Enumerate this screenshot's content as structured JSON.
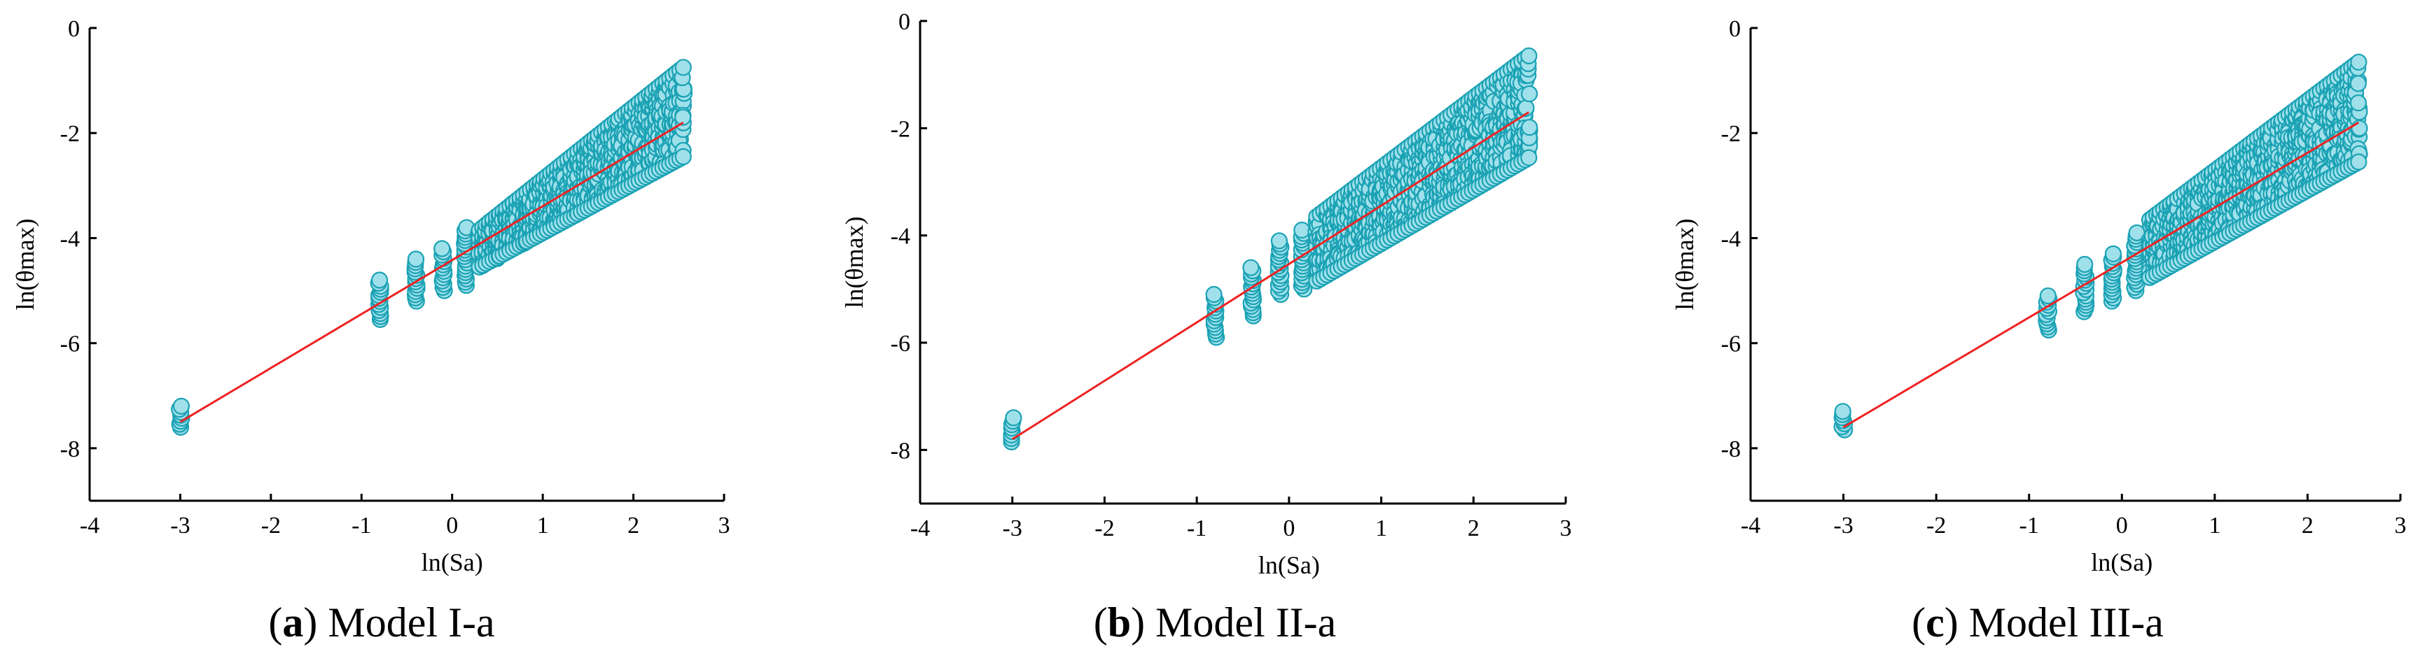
{
  "chart_data": [
    {
      "type": "scatter",
      "caption": {
        "open": "(",
        "letter": "a",
        "close": ")",
        "text": " Model I-a"
      },
      "xlabel": "ln(Sa)",
      "ylabel": "ln(θmax)",
      "xlim": [
        -4,
        3
      ],
      "ylim": [
        -9,
        0
      ],
      "xticks": [
        -4,
        -3,
        -2,
        -1,
        0,
        1,
        2,
        3
      ],
      "yticks": [
        0,
        -2,
        -4,
        -6,
        -8
      ],
      "fit_line": {
        "x": [
          -3.0,
          2.55
        ],
        "y": [
          -7.5,
          -1.8
        ]
      },
      "clusters": [
        {
          "x": -3.0,
          "ymin": -7.6,
          "ymax": -7.2
        },
        {
          "x": -0.8,
          "ymin": -5.55,
          "ymax": -4.8
        },
        {
          "x": -0.4,
          "ymin": -5.2,
          "ymax": -4.4
        },
        {
          "x": -0.1,
          "ymin": -5.0,
          "ymax": -4.2
        },
        {
          "x": 0.15,
          "ymin": -4.9,
          "ymax": -3.8
        }
      ],
      "band": {
        "xmin": 0.3,
        "xmax": 2.55,
        "low_start": -4.6,
        "low_end": -2.5,
        "high_start": -3.8,
        "high_end": -0.7
      }
    },
    {
      "type": "scatter",
      "caption": {
        "open": "(",
        "letter": "b",
        "close": ")",
        "text": " Model II-a"
      },
      "xlabel": "ln(Sa)",
      "ylabel": "ln(θmax)",
      "xlim": [
        -4,
        3
      ],
      "ylim": [
        -9,
        0
      ],
      "xticks": [
        -4,
        -3,
        -2,
        -1,
        0,
        1,
        2,
        3
      ],
      "yticks": [
        0,
        -2,
        -4,
        -6,
        -8
      ],
      "fit_line": {
        "x": [
          -3.0,
          2.6
        ],
        "y": [
          -7.8,
          -1.7
        ]
      },
      "clusters": [
        {
          "x": -3.0,
          "ymin": -7.85,
          "ymax": -7.4
        },
        {
          "x": -0.8,
          "ymin": -5.9,
          "ymax": -5.1
        },
        {
          "x": -0.4,
          "ymin": -5.5,
          "ymax": -4.6
        },
        {
          "x": -0.1,
          "ymin": -5.1,
          "ymax": -4.1
        },
        {
          "x": 0.15,
          "ymin": -5.0,
          "ymax": -3.9
        }
      ],
      "band": {
        "xmin": 0.3,
        "xmax": 2.6,
        "low_start": -4.9,
        "low_end": -2.6,
        "high_start": -3.6,
        "high_end": -0.6
      }
    },
    {
      "type": "scatter",
      "caption": {
        "open": "(",
        "letter": "c",
        "close": ")",
        "text": " Model III-a"
      },
      "xlabel": "ln(Sa)",
      "ylabel": "ln(θmax)",
      "xlim": [
        -4,
        3
      ],
      "ylim": [
        -9,
        0
      ],
      "xticks": [
        -4,
        -3,
        -2,
        -1,
        0,
        1,
        2,
        3
      ],
      "yticks": [
        0,
        -2,
        -4,
        -6,
        -8
      ],
      "fit_line": {
        "x": [
          -3.0,
          2.55
        ],
        "y": [
          -7.6,
          -1.8
        ]
      },
      "clusters": [
        {
          "x": -3.0,
          "ymin": -7.65,
          "ymax": -7.3
        },
        {
          "x": -0.8,
          "ymin": -5.75,
          "ymax": -5.1
        },
        {
          "x": -0.4,
          "ymin": -5.4,
          "ymax": -4.5
        },
        {
          "x": -0.1,
          "ymin": -5.2,
          "ymax": -4.3
        },
        {
          "x": 0.15,
          "ymin": -5.0,
          "ymax": -3.9
        }
      ],
      "band": {
        "xmin": 0.3,
        "xmax": 2.55,
        "low_start": -4.8,
        "low_end": -2.6,
        "high_start": -3.6,
        "high_end": -0.6
      }
    }
  ],
  "colors": {
    "point_fill": "#9fe0ea",
    "point_stroke": "#1aa2b4",
    "fit_line": "#ee2222",
    "axis": "#000000"
  }
}
